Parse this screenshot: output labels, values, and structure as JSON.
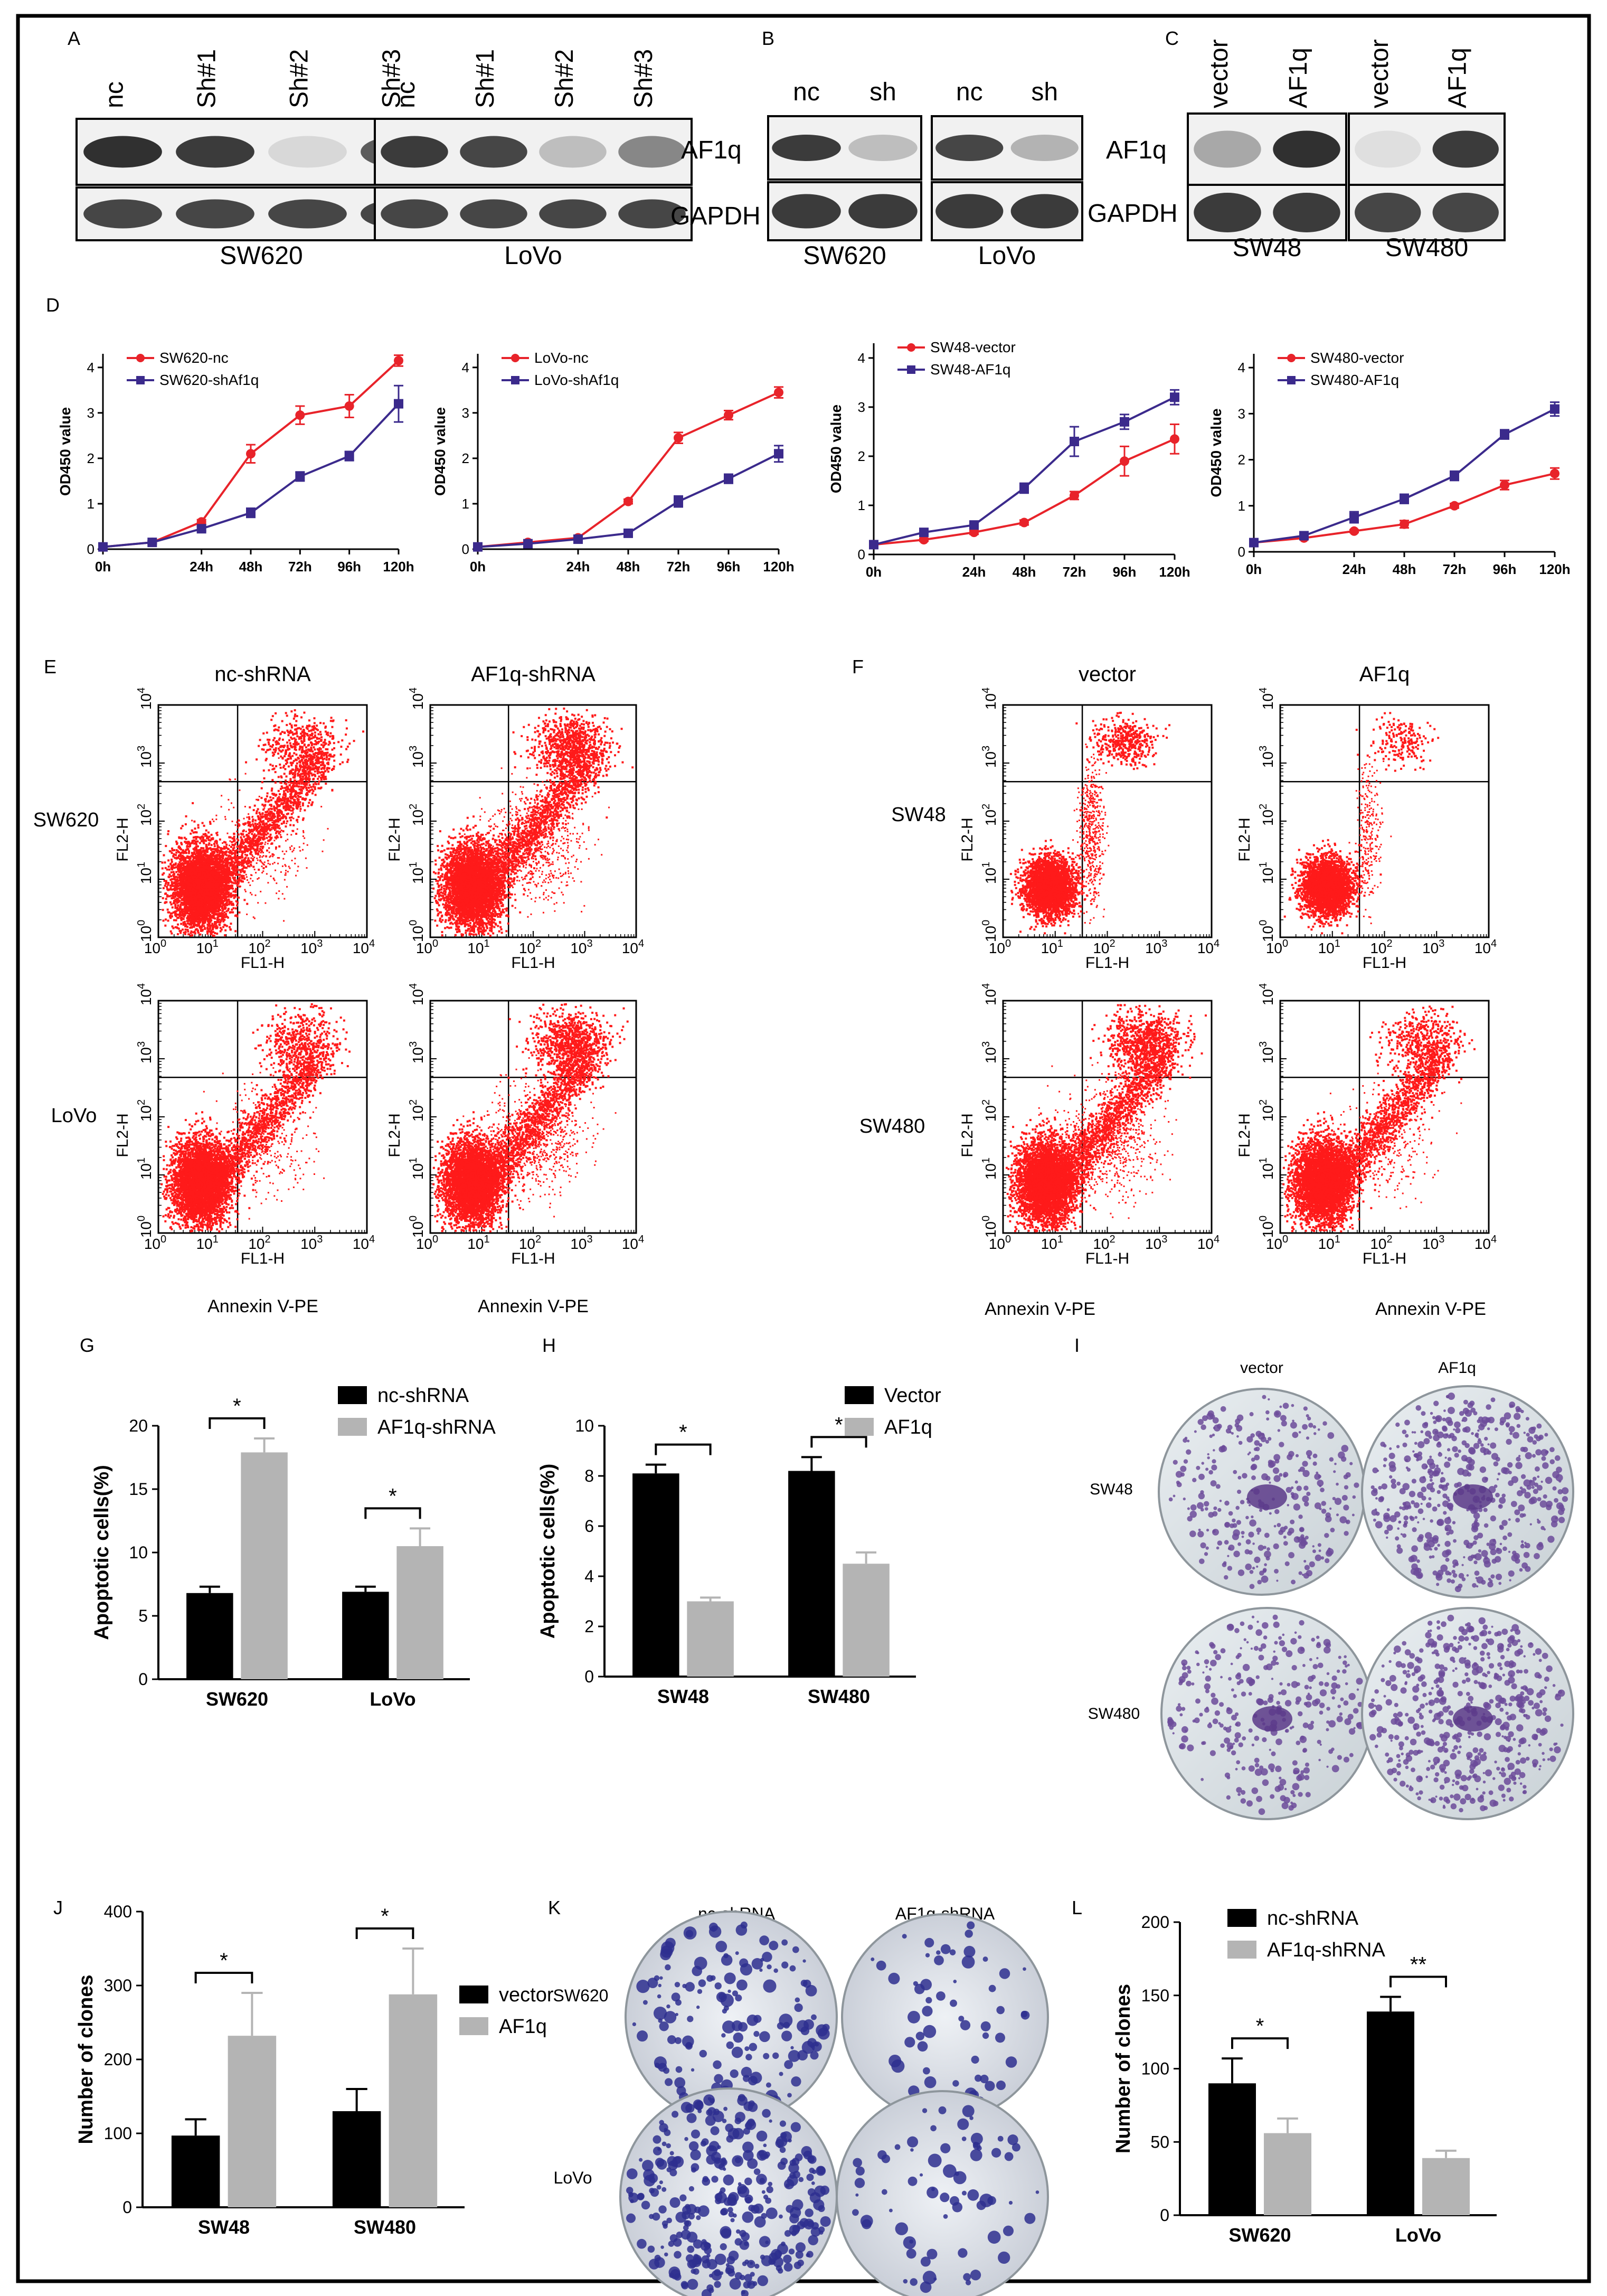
{
  "panel_labels": [
    "A",
    "B",
    "C",
    "D",
    "E",
    "F",
    "G",
    "H",
    "I",
    "J",
    "K",
    "L"
  ],
  "blots": {
    "A": {
      "groups": [
        {
          "lanes": [
            "nc",
            "Sh#1",
            "Sh#2",
            "Sh#3"
          ],
          "af1q": [
            0.95,
            0.9,
            0.18,
            0.75
          ],
          "gapdh": [
            0.85,
            0.85,
            0.85,
            0.85
          ],
          "cell": "SW620"
        },
        {
          "lanes": [
            "nc",
            "Sh#1",
            "Sh#2",
            "Sh#3"
          ],
          "af1q": [
            0.9,
            0.85,
            0.3,
            0.55
          ],
          "gapdh": [
            0.85,
            0.85,
            0.85,
            0.85
          ],
          "cell": "LoVo"
        }
      ],
      "row_labels": [
        "AF1q",
        "GAPDH"
      ]
    },
    "B": {
      "groups": [
        {
          "lanes": [
            "nc",
            "sh"
          ],
          "af1q": [
            0.9,
            0.3
          ],
          "gapdh": [
            0.9,
            0.9
          ],
          "cell": "SW620"
        },
        {
          "lanes": [
            "nc",
            "sh"
          ],
          "af1q": [
            0.85,
            0.35
          ],
          "gapdh": [
            0.9,
            0.9
          ],
          "cell": "LoVo"
        }
      ],
      "row_labels": [
        "AF1q",
        "GAPDH"
      ]
    },
    "C": {
      "groups": [
        {
          "lanes": [
            "vector",
            "AF1q"
          ],
          "af1q": [
            0.4,
            0.95
          ],
          "gapdh": [
            0.9,
            0.9
          ],
          "cell": "SW48"
        },
        {
          "lanes": [
            "vector",
            "AF1q"
          ],
          "af1q": [
            0.15,
            0.9
          ],
          "gapdh": [
            0.85,
            0.85
          ],
          "cell": "SW480"
        }
      ],
      "row_labels": [
        "AF1q",
        "GAPDH"
      ]
    }
  },
  "flow": {
    "E_cols": [
      "nc-shRNA",
      "AF1q-shRNA"
    ],
    "E_rows": [
      "SW620",
      "LoVo"
    ],
    "F_cols": [
      "vector",
      "AF1q"
    ],
    "F_rows": [
      "SW48",
      "SW480"
    ],
    "xlabel": "FL1-H",
    "ylabel": "FL2-H",
    "annexin": "Annexin V-PE"
  },
  "dishes": {
    "I_cols": [
      "vector",
      "AF1q"
    ],
    "I_rows": [
      "SW48",
      "SW480"
    ],
    "K_cols": [
      "nc-shRNA",
      "AF1q-shRNA"
    ],
    "K_rows": [
      "SW620",
      "LoVo"
    ]
  },
  "colors": {
    "red": "#e8232a",
    "purple": "#3b2a8c",
    "black": "#000000",
    "gray": "#b4b4b4",
    "flowdot": "#ff1a1a"
  },
  "chart_data": [
    {
      "id": "D1",
      "type": "line",
      "title": "",
      "xlabel": "",
      "ylabel": "OD450 value",
      "x": [
        "0h",
        "12h",
        "24h",
        "48h",
        "72h",
        "96h",
        "120h"
      ],
      "ylim": [
        0,
        4.3
      ],
      "yticks": [
        0,
        1,
        2,
        3,
        4
      ],
      "xticks": [
        "0h",
        "24h",
        "48h",
        "72h",
        "96h",
        "120h"
      ],
      "series": [
        {
          "name": "SW620-nc",
          "color": "#e8232a",
          "values": [
            0.05,
            0.15,
            0.6,
            2.1,
            2.95,
            3.15,
            4.15
          ],
          "err": [
            0.02,
            0.03,
            0.05,
            0.2,
            0.2,
            0.25,
            0.12
          ]
        },
        {
          "name": "SW620-shAf1q",
          "color": "#3b2a8c",
          "values": [
            0.05,
            0.15,
            0.45,
            0.8,
            1.6,
            2.05,
            3.2
          ],
          "err": [
            0.02,
            0.03,
            0.05,
            0.1,
            0.1,
            0.1,
            0.4
          ]
        }
      ]
    },
    {
      "id": "D2",
      "type": "line",
      "title": "",
      "xlabel": "",
      "ylabel": "OD450 value",
      "x": [
        "0h",
        "12h",
        "24h",
        "48h",
        "72h",
        "96h",
        "120h"
      ],
      "ylim": [
        0,
        4.3
      ],
      "yticks": [
        0,
        1,
        2,
        3,
        4
      ],
      "xticks": [
        "0h",
        "24h",
        "48h",
        "72h",
        "96h",
        "120h"
      ],
      "series": [
        {
          "name": "LoVo-nc",
          "color": "#e8232a",
          "values": [
            0.05,
            0.15,
            0.25,
            1.05,
            2.45,
            2.95,
            3.45
          ],
          "err": [
            0.02,
            0.02,
            0.03,
            0.05,
            0.12,
            0.1,
            0.12
          ]
        },
        {
          "name": "LoVo-shAf1q",
          "color": "#3b2a8c",
          "values": [
            0.05,
            0.12,
            0.22,
            0.35,
            1.05,
            1.55,
            2.1
          ],
          "err": [
            0.02,
            0.02,
            0.03,
            0.05,
            0.12,
            0.1,
            0.18
          ]
        }
      ]
    },
    {
      "id": "D3",
      "type": "line",
      "title": "",
      "xlabel": "",
      "ylabel": "OD450 value",
      "x": [
        "0h",
        "12h",
        "24h",
        "48h",
        "72h",
        "96h",
        "120h"
      ],
      "ylim": [
        0,
        4.3
      ],
      "yticks": [
        0,
        1,
        2,
        3,
        4
      ],
      "xticks": [
        "0h",
        "24h",
        "48h",
        "72h",
        "96h",
        "120h"
      ],
      "series": [
        {
          "name": "SW48-vector",
          "color": "#e8232a",
          "values": [
            0.2,
            0.3,
            0.45,
            0.65,
            1.2,
            1.9,
            2.35
          ],
          "err": [
            0.02,
            0.03,
            0.04,
            0.05,
            0.08,
            0.3,
            0.3
          ]
        },
        {
          "name": "SW48-AF1q",
          "color": "#3b2a8c",
          "values": [
            0.2,
            0.45,
            0.6,
            1.35,
            2.3,
            2.7,
            3.2
          ],
          "err": [
            0.02,
            0.03,
            0.05,
            0.1,
            0.3,
            0.15,
            0.15
          ]
        }
      ]
    },
    {
      "id": "D4",
      "type": "line",
      "title": "",
      "xlabel": "",
      "ylabel": "OD450 value",
      "x": [
        "0h",
        "12h",
        "24h",
        "48h",
        "72h",
        "96h",
        "120h"
      ],
      "ylim": [
        0,
        4.3
      ],
      "yticks": [
        0,
        1,
        2,
        3,
        4
      ],
      "xticks": [
        "0h",
        "24h",
        "48h",
        "72h",
        "96h",
        "120h"
      ],
      "series": [
        {
          "name": "SW480-vector",
          "color": "#e8232a",
          "values": [
            0.2,
            0.3,
            0.45,
            0.6,
            1.0,
            1.45,
            1.7
          ],
          "err": [
            0.02,
            0.03,
            0.03,
            0.08,
            0.05,
            0.1,
            0.12
          ]
        },
        {
          "name": "SW480-AF1q",
          "color": "#3b2a8c",
          "values": [
            0.2,
            0.35,
            0.75,
            1.15,
            1.65,
            2.55,
            3.1
          ],
          "err": [
            0.02,
            0.03,
            0.12,
            0.1,
            0.1,
            0.1,
            0.15
          ]
        }
      ]
    },
    {
      "id": "G",
      "type": "bar",
      "title": "",
      "xlabel": "",
      "ylabel": "Apoptotic cells(%)",
      "categories": [
        "SW620",
        "LoVo"
      ],
      "ylim": [
        0,
        20
      ],
      "yticks": [
        0,
        5,
        10,
        15,
        20
      ],
      "series": [
        {
          "name": "nc-shRNA",
          "color": "#000000",
          "values": [
            6.8,
            6.9
          ],
          "err": [
            0.5,
            0.4
          ]
        },
        {
          "name": "AF1q-shRNA",
          "color": "#b4b4b4",
          "values": [
            17.9,
            10.5
          ],
          "err": [
            1.1,
            1.4
          ]
        }
      ],
      "sig": [
        "*",
        "*"
      ]
    },
    {
      "id": "H",
      "type": "bar",
      "title": "",
      "xlabel": "",
      "ylabel": "Apoptotic cells(%)",
      "categories": [
        "SW48",
        "SW480"
      ],
      "ylim": [
        0,
        10
      ],
      "yticks": [
        0,
        2,
        4,
        6,
        8,
        10
      ],
      "series": [
        {
          "name": "Vector",
          "color": "#000000",
          "values": [
            8.1,
            8.2
          ],
          "err": [
            0.35,
            0.55
          ]
        },
        {
          "name": "AF1q",
          "color": "#b4b4b4",
          "values": [
            3.0,
            4.5
          ],
          "err": [
            0.15,
            0.45
          ]
        }
      ],
      "sig": [
        "*",
        "*"
      ]
    },
    {
      "id": "J",
      "type": "bar",
      "title": "",
      "xlabel": "",
      "ylabel": "Number of clones",
      "categories": [
        "SW48",
        "SW480"
      ],
      "ylim": [
        0,
        400
      ],
      "yticks": [
        0,
        100,
        200,
        300,
        400
      ],
      "series": [
        {
          "name": "vector",
          "color": "#000000",
          "values": [
            97,
            130
          ],
          "err": [
            22,
            30
          ]
        },
        {
          "name": "AF1q",
          "color": "#b4b4b4",
          "values": [
            232,
            288
          ],
          "err": [
            58,
            62
          ]
        }
      ],
      "sig": [
        "*",
        "*"
      ]
    },
    {
      "id": "L",
      "type": "bar",
      "title": "",
      "xlabel": "",
      "ylabel": "Number of clones",
      "categories": [
        "SW620",
        "LoVo"
      ],
      "ylim": [
        0,
        200
      ],
      "yticks": [
        0,
        50,
        100,
        150,
        200
      ],
      "series": [
        {
          "name": "nc-shRNA",
          "color": "#000000",
          "values": [
            90,
            139
          ],
          "err": [
            17,
            10
          ]
        },
        {
          "name": "AF1q-shRNA",
          "color": "#b4b4b4",
          "values": [
            56,
            39
          ],
          "err": [
            10,
            5
          ]
        }
      ],
      "sig": [
        "*",
        "**"
      ]
    }
  ]
}
